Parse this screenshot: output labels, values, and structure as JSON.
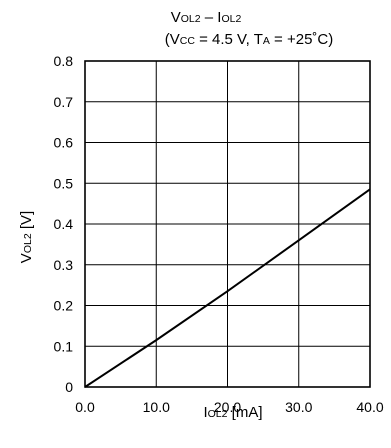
{
  "chart_data": {
    "type": "line",
    "title": {
      "main": "VOL2 – IOL2",
      "parts": [
        {
          "text": "V",
          "size": "main"
        },
        {
          "text": "OL2",
          "size": "sub"
        },
        {
          "text": " – I",
          "size": "main"
        },
        {
          "text": "OL2",
          "size": "sub"
        }
      ]
    },
    "subtitle": {
      "text": "(Vcc = 4.5 V, TA = +25˚C)",
      "parts": [
        {
          "text": "(V",
          "size": "main"
        },
        {
          "text": "CC",
          "size": "sub"
        },
        {
          "text": " = 4.5 V, T",
          "size": "main"
        },
        {
          "text": "A",
          "size": "sub"
        },
        {
          "text": " = +25˚C)",
          "size": "main"
        }
      ]
    },
    "xlabel": {
      "text": "IOL2 [mA]",
      "parts": [
        {
          "text": "I",
          "size": "main"
        },
        {
          "text": "OL2",
          "size": "sub"
        },
        {
          "text": " [mA]",
          "size": "main"
        }
      ]
    },
    "ylabel": {
      "text": "VOL2 [V]",
      "parts": [
        {
          "text": "V",
          "size": "main"
        },
        {
          "text": "OL2",
          "size": "sub"
        },
        {
          "text": " [V]",
          "size": "main"
        }
      ]
    },
    "xlim": [
      0,
      40
    ],
    "ylim": [
      0,
      0.8
    ],
    "x_ticks": [
      0,
      10,
      20,
      30,
      40
    ],
    "x_tick_labels": [
      "0.0",
      "10.0",
      "20.0",
      "30.0",
      "40.0"
    ],
    "y_ticks": [
      0,
      0.1,
      0.2,
      0.3,
      0.4,
      0.5,
      0.6,
      0.7,
      0.8
    ],
    "y_tick_labels": [
      "0",
      "0.1",
      "0.2",
      "0.3",
      "0.4",
      "0.5",
      "0.6",
      "0.7",
      "0.8"
    ],
    "grid": true,
    "legend": "none",
    "series": [
      {
        "x": [
          0,
          10,
          20,
          30,
          40
        ],
        "y": [
          0,
          0.115,
          0.235,
          0.36,
          0.485
        ]
      }
    ],
    "colors": {
      "line": "#000000",
      "grid": "#000000",
      "background": "#ffffff"
    }
  }
}
